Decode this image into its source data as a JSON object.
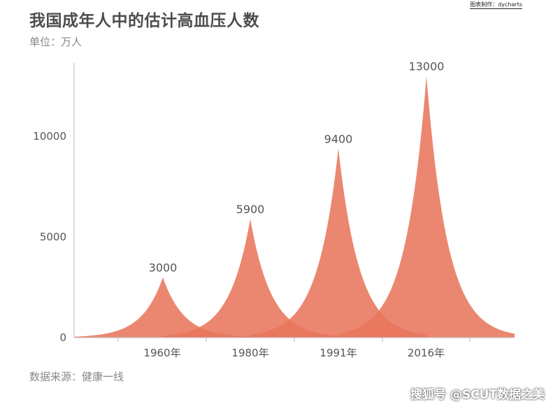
{
  "header": {
    "title": "我国成年人中的估计高血压人数",
    "unit": "单位：万人",
    "credit": "图表制作：dycharts"
  },
  "footer": {
    "source": "数据来源：健康一线",
    "watermark": "搜狐号 @SCUT数据之美"
  },
  "colors": {
    "peak_fill": "#e8765c",
    "axis": "#bbbbbb",
    "text": "#555555"
  },
  "chart_data": {
    "type": "area",
    "title": "我国成年人中的估计高血压人数",
    "subtitle": "单位：万人",
    "categories": [
      "1960年",
      "1980年",
      "1991年",
      "2016年"
    ],
    "values": [
      3000,
      5900,
      9400,
      13000
    ],
    "data_labels": [
      "3000",
      "5900",
      "9400",
      "13000"
    ],
    "y_ticks": [
      0,
      5000,
      10000
    ],
    "y_tick_labels": [
      "0",
      "5000",
      "10000"
    ],
    "ylim": [
      0,
      13000
    ],
    "grid": false,
    "legend": "none"
  }
}
